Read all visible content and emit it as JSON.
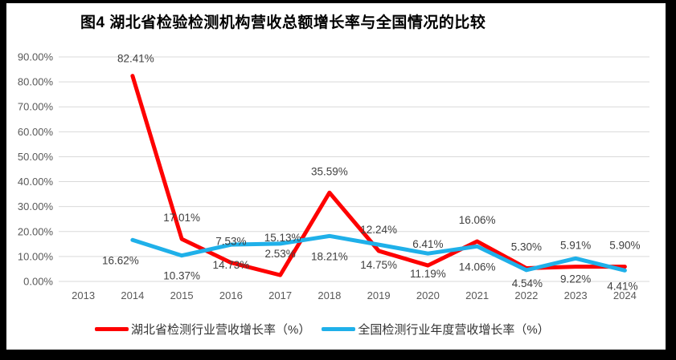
{
  "window": {
    "frame_color": "#000000",
    "page_color": "#ffffff"
  },
  "chart_data": {
    "type": "line",
    "title": "图4 湖北省检验检测机构营收总额增长率与全国情况的比较",
    "categories": [
      "2013",
      "2014",
      "2015",
      "2016",
      "2017",
      "2018",
      "2019",
      "2020",
      "2021",
      "2022",
      "2023",
      "2024"
    ],
    "series": [
      {
        "name": "湖北省检测行业营收增长率（%）",
        "color": "#FE0000",
        "values": [
          null,
          82.41,
          17.01,
          7.53,
          2.53,
          35.59,
          12.24,
          6.41,
          16.06,
          5.3,
          5.91,
          5.9
        ],
        "point_labels": [
          null,
          "82.41%",
          "17.01%",
          "7.53%",
          "2.53%",
          "35.59%",
          "12.24%",
          "6.41%",
          "16.06%",
          "5.30%",
          "5.91%",
          "5.90%"
        ]
      },
      {
        "name": "全国检测行业年度营收增长率（%）",
        "color": "#1FB0E9",
        "values": [
          null,
          16.62,
          10.37,
          14.73,
          15.13,
          18.21,
          14.75,
          11.19,
          14.06,
          4.54,
          9.22,
          4.41
        ],
        "point_labels": [
          null,
          "16.62%",
          "10.37%",
          "14.73%",
          "15.13%",
          "18.21%",
          "14.75%",
          "11.19%",
          "14.06%",
          "4.54%",
          "9.22%",
          "4.41%"
        ]
      }
    ],
    "xlabel": "",
    "ylabel": "",
    "ylim": [
      0,
      90
    ],
    "y_tick_step": 10,
    "y_ticks": [
      "0.00%",
      "10.00%",
      "20.00%",
      "30.00%",
      "40.00%",
      "50.00%",
      "60.00%",
      "70.00%",
      "80.00%",
      "90.00%"
    ],
    "grid": true,
    "legend_position": "bottom",
    "colors": {
      "gridline": "#D9D9D9",
      "axis_text": "#595959",
      "data_label": "#404040",
      "title_text": "#000000"
    }
  }
}
